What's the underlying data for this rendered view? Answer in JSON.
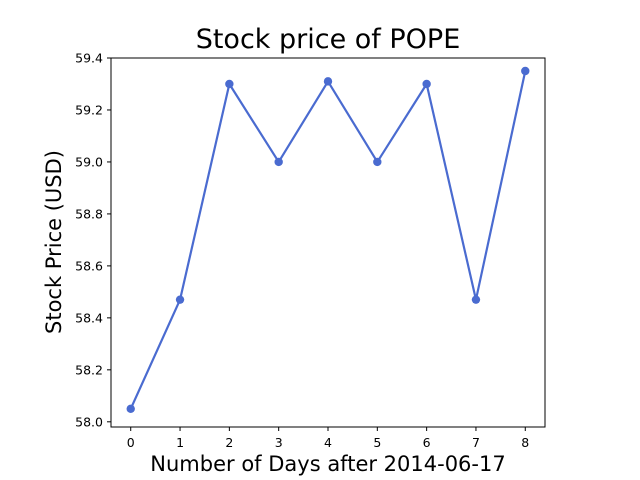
{
  "chart_data": {
    "type": "line",
    "title": "Stock price of POPE",
    "xlabel": "Number of Days after 2014-06-17",
    "ylabel": "Stock Price (USD)",
    "x": [
      0,
      1,
      2,
      3,
      4,
      5,
      6,
      7,
      8
    ],
    "series": [
      {
        "values": [
          58.05,
          58.47,
          59.3,
          59.0,
          59.31,
          59.0,
          59.3,
          58.47,
          59.35
        ],
        "color": "#4a6bd0"
      }
    ],
    "xticks": [
      "0",
      "1",
      "2",
      "3",
      "4",
      "5",
      "6",
      "7",
      "8"
    ],
    "yticks": [
      "58.0",
      "58.2",
      "58.4",
      "58.6",
      "58.8",
      "59.0",
      "59.2",
      "59.4"
    ],
    "xlim": [
      -0.4,
      8.4
    ],
    "ylim": [
      57.98,
      59.4
    ],
    "grid": false,
    "legend": "none"
  }
}
